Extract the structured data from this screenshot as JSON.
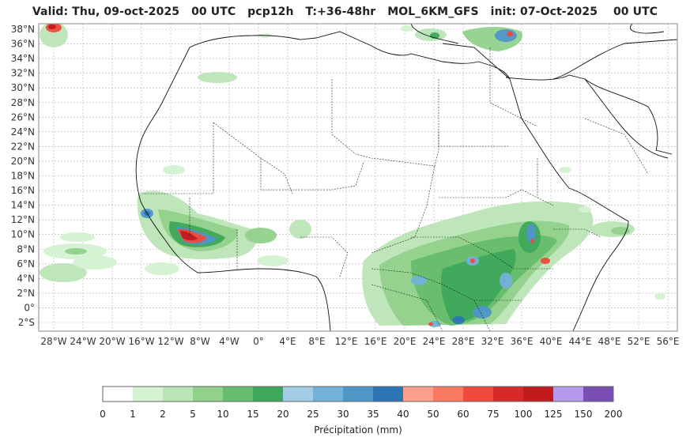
{
  "title": {
    "valid": "Valid: Thu, 09-oct-2025",
    "valid_hour": "00 UTC",
    "product": "pcp12h",
    "range": "T:+36-48hr",
    "model": "MOL_6KM_GFS",
    "init": "init: 07-Oct-2025",
    "init_hour": "00 UTC"
  },
  "map": {
    "lat_ticks": [
      "38°N",
      "36°N",
      "34°N",
      "32°N",
      "30°N",
      "28°N",
      "26°N",
      "24°N",
      "22°N",
      "20°N",
      "18°N",
      "16°N",
      "14°N",
      "12°N",
      "10°N",
      "8°N",
      "6°N",
      "4°N",
      "2°N",
      "0°",
      "2°S"
    ],
    "lon_ticks": [
      "28°W",
      "24°W",
      "20°W",
      "16°W",
      "12°W",
      "8°W",
      "4°W",
      "0°",
      "4°E",
      "8°E",
      "12°E",
      "16°E",
      "20°E",
      "24°E",
      "28°E",
      "32°E",
      "36°E",
      "40°E",
      "44°E",
      "48°E",
      "52°E",
      "56°E"
    ],
    "grid": true
  },
  "colorbar": {
    "label": "Précipitation (mm)",
    "ticks": [
      "0",
      "1",
      "2",
      "5",
      "10",
      "15",
      "20",
      "25",
      "30",
      "35",
      "40",
      "50",
      "60",
      "75",
      "100",
      "125",
      "150",
      "200"
    ],
    "colors": [
      "#ffffff",
      "#d3f2d0",
      "#bbe5b6",
      "#91d18b",
      "#66bd6d",
      "#3ea85a",
      "#a3cde4",
      "#73b1d9",
      "#4f96c8",
      "#2c75b6",
      "#fba08a",
      "#f97a61",
      "#ef4a3b",
      "#d7282a",
      "#c11b1e",
      "#b499ec",
      "#7b4eb6",
      "#4b0082"
    ]
  }
}
